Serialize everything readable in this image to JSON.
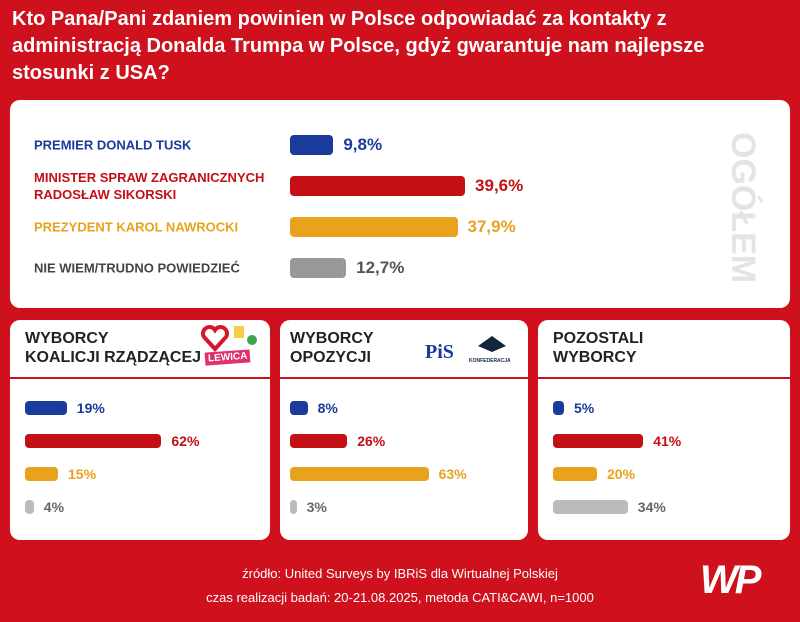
{
  "title": "Kto Pana/Pani zdaniem powinien w Polsce odpowiadać za kontakty z administracją Donalda Trumpa w Polsce, gdyż gwarantuje nam najlepsze stosunki z USA?",
  "chart_data": [
    {
      "type": "hbar",
      "title": [
        "OGÓŁEM"
      ],
      "categories": [
        "PREMIER DONALD TUSK",
        "MINISTER SPRAW ZAGRANICZNYCH RADOSŁAW SIKORSKI",
        "PREZYDENT KAROL NAWROCKI",
        "NIE WIEM/TRUDNO POWIEDZIEĆ"
      ],
      "values": [
        9.8,
        39.6,
        37.9,
        12.7
      ],
      "value_labels": [
        "9,8%",
        "39,6%",
        "37,9%",
        "12,7%"
      ],
      "colors": [
        "#1a3a9c",
        "#c40f14",
        "#e8a21c",
        "#999999"
      ]
    },
    {
      "type": "hbar",
      "title": [
        "WYBORCY",
        "KOALICJI RZĄDZĄCEJ"
      ],
      "values": [
        19,
        62,
        15,
        4
      ],
      "value_labels": [
        "19%",
        "62%",
        "15%",
        "4%"
      ],
      "colors": [
        "#1a3a9c",
        "#c40f14",
        "#e8a21c",
        "#bbbbbb"
      ]
    },
    {
      "type": "hbar",
      "title": [
        "WYBORCY",
        "OPOZYCJI"
      ],
      "values": [
        8,
        26,
        63,
        3
      ],
      "value_labels": [
        "8%",
        "26%",
        "63%",
        "3%"
      ],
      "colors": [
        "#1a3a9c",
        "#c40f14",
        "#e8a21c",
        "#bbbbbb"
      ]
    },
    {
      "type": "hbar",
      "title": [
        "POZOSTALI",
        "WYBORCY"
      ],
      "values": [
        5,
        41,
        20,
        34
      ],
      "value_labels": [
        "5%",
        "41%",
        "20%",
        "34%"
      ],
      "colors": [
        "#1a3a9c",
        "#c40f14",
        "#e8a21c",
        "#bbbbbb"
      ]
    }
  ],
  "logos": [
    "LEWICA",
    "PiS",
    "KONFEDERACJA",
    "WP"
  ],
  "source": "źródło: United Surveys by IBRiS dla Wirtualnej Polskiej",
  "method": "czas realizacji badań: 20-21.08.2025, metoda CATI&CAWI, n=1000"
}
